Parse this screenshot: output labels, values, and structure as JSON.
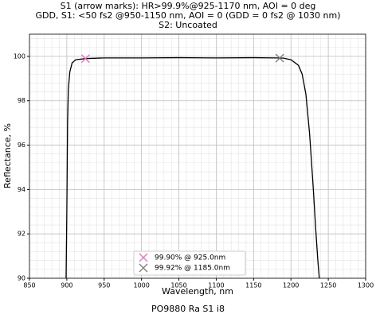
{
  "chart_data": {
    "type": "line",
    "title": [
      "S1 (arrow marks): HR>99.9%@925-1170 nm, AOI = 0 deg",
      "GDD, S1: <50 fs2 @950-1150 nm, AOI = 0 (GDD = 0 fs2 @ 1030 nm)",
      "S2: Uncoated"
    ],
    "xlabel": "Wavelength, nm",
    "ylabel": "Reflectance, %",
    "footer": "PO9880 Ra S1 i8",
    "x": [
      899,
      900,
      901,
      902,
      904,
      907,
      912,
      925,
      950,
      1000,
      1050,
      1100,
      1150,
      1180,
      1190,
      1200,
      1210,
      1215,
      1220,
      1225,
      1230,
      1233,
      1236,
      1238
    ],
    "values": [
      90,
      93,
      97,
      98.5,
      99.3,
      99.7,
      99.85,
      99.9,
      99.93,
      99.93,
      99.94,
      99.93,
      99.94,
      99.93,
      99.92,
      99.85,
      99.6,
      99.2,
      98.3,
      96.5,
      94,
      92.3,
      90.8,
      90
    ],
    "color": "#000000",
    "markers": [
      {
        "label": "99.90% @ 925.0nm",
        "x": 925,
        "y": 99.9,
        "color": "#e377c2"
      },
      {
        "label": "99.92% @ 1185.0nm",
        "x": 1185,
        "y": 99.92,
        "color": "#7f7f7f"
      }
    ],
    "xlim": [
      850,
      1300
    ],
    "ylim": [
      90,
      101
    ],
    "xticks": [
      850,
      900,
      950,
      1000,
      1050,
      1100,
      1150,
      1200,
      1250,
      1300
    ],
    "yticks": [
      90,
      92,
      94,
      96,
      98,
      100
    ],
    "xminorticks": [
      860,
      870,
      880,
      890,
      910,
      920,
      930,
      940,
      960,
      970,
      980,
      990,
      1010,
      1020,
      1030,
      1040,
      1060,
      1070,
      1080,
      1090,
      1110,
      1120,
      1130,
      1140,
      1160,
      1170,
      1180,
      1190,
      1210,
      1220,
      1230,
      1240,
      1260,
      1270,
      1280,
      1290
    ],
    "yminorticks": [
      90.4,
      90.8,
      91.2,
      91.6,
      92.4,
      92.8,
      93.2,
      93.6,
      94.4,
      94.8,
      95.2,
      95.6,
      96.4,
      96.8,
      97.2,
      97.6,
      98.4,
      98.8,
      99.2,
      99.6,
      100.4,
      100.8
    ],
    "grid": true,
    "legend": "lower center"
  }
}
